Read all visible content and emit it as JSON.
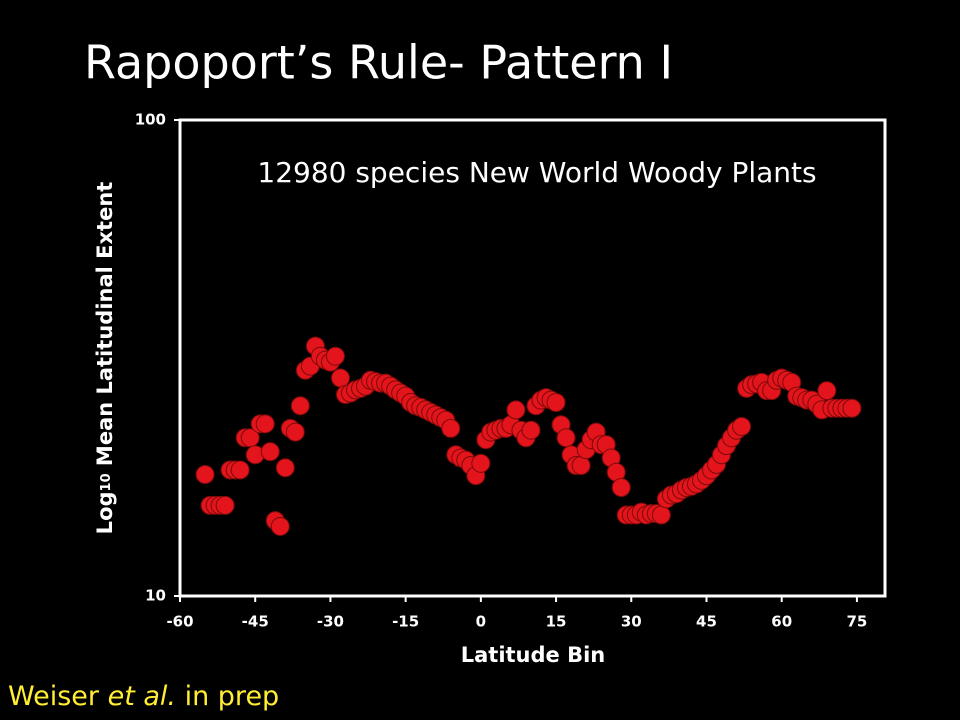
{
  "chart_data": {
    "type": "scatter",
    "title": "Rapoport’s Rule- Pattern I",
    "annotation": "12980 species New World Woody Plants",
    "xlabel": "Latitude Bin",
    "ylabel": {
      "base": "Log",
      "sub": "10",
      "rest": " Mean Latitudinal Extent"
    },
    "footer": {
      "before": "Weiser ",
      "italic": "et al.",
      "after": " in prep"
    },
    "x": [
      -55,
      -54,
      -53,
      -52,
      -51,
      -50,
      -49,
      -48,
      -47,
      -46,
      -45,
      -44,
      -43,
      -42,
      -41,
      -40,
      -39,
      -38,
      -37,
      -36,
      -35,
      -34,
      -33,
      -32,
      -31,
      -30,
      -29,
      -28,
      -27,
      -26,
      -25,
      -24,
      -23,
      -22,
      -21,
      -20,
      -19,
      -18,
      -17,
      -16,
      -15,
      -14,
      -13,
      -12,
      -11,
      -10,
      -9,
      -8,
      -7,
      -6,
      -5,
      -4,
      -3,
      -2,
      -1,
      0,
      1,
      2,
      3,
      4,
      5,
      6,
      7,
      8,
      9,
      10,
      11,
      12,
      13,
      14,
      15,
      16,
      17,
      18,
      19,
      20,
      21,
      22,
      23,
      24,
      25,
      26,
      27,
      28,
      29,
      30,
      31,
      32,
      33,
      34,
      35,
      36,
      37,
      38,
      39,
      40,
      41,
      42,
      43,
      44,
      45,
      46,
      47,
      48,
      49,
      50,
      51,
      52,
      53,
      54,
      55,
      56,
      57,
      58,
      59,
      60,
      61,
      62,
      63,
      64,
      65,
      66,
      67,
      68,
      69,
      70,
      71,
      72,
      73,
      74
    ],
    "values": [
      18.0,
      15.5,
      15.5,
      15.5,
      15.5,
      18.4,
      18.4,
      18.4,
      21.5,
      21.5,
      19.8,
      23.0,
      23.0,
      20.1,
      14.4,
      14.0,
      18.6,
      22.5,
      22.1,
      25.1,
      29.8,
      30.4,
      33.5,
      31.9,
      31.3,
      31.0,
      31.9,
      28.7,
      26.5,
      26.7,
      27.1,
      27.3,
      27.6,
      28.4,
      28.2,
      28.0,
      28.0,
      27.6,
      27.1,
      26.7,
      26.3,
      25.5,
      25.1,
      24.9,
      24.6,
      24.3,
      24.0,
      23.7,
      23.4,
      22.5,
      19.8,
      19.5,
      19.3,
      18.8,
      17.9,
      19.0,
      21.3,
      22.1,
      22.3,
      22.5,
      22.5,
      22.9,
      24.6,
      22.3,
      21.5,
      22.3,
      25.1,
      25.8,
      26.1,
      25.8,
      25.5,
      22.9,
      21.5,
      19.8,
      18.8,
      18.8,
      20.3,
      21.3,
      22.1,
      20.8,
      20.8,
      19.5,
      18.2,
      16.9,
      14.8,
      14.8,
      14.8,
      15.0,
      14.8,
      14.9,
      14.9,
      14.8,
      16.0,
      16.3,
      16.4,
      16.7,
      16.9,
      17.0,
      17.2,
      17.5,
      17.9,
      18.4,
      18.9,
      19.8,
      20.7,
      21.5,
      22.3,
      22.7,
      27.3,
      27.8,
      27.9,
      28.1,
      27.0,
      27.0,
      28.4,
      28.7,
      28.4,
      28.1,
      26.3,
      26.1,
      25.8,
      25.8,
      25.3,
      24.6,
      27.0,
      24.8,
      24.8,
      24.8,
      24.8,
      24.8
    ],
    "color": "#e3141b",
    "xlim": [
      -60,
      80.6
    ],
    "xticks": [
      -60,
      -45,
      -30,
      -15,
      0,
      15,
      30,
      45,
      60,
      75
    ],
    "ylim": [
      10,
      100
    ],
    "yticks": [
      10,
      100
    ],
    "log_y": true
  }
}
